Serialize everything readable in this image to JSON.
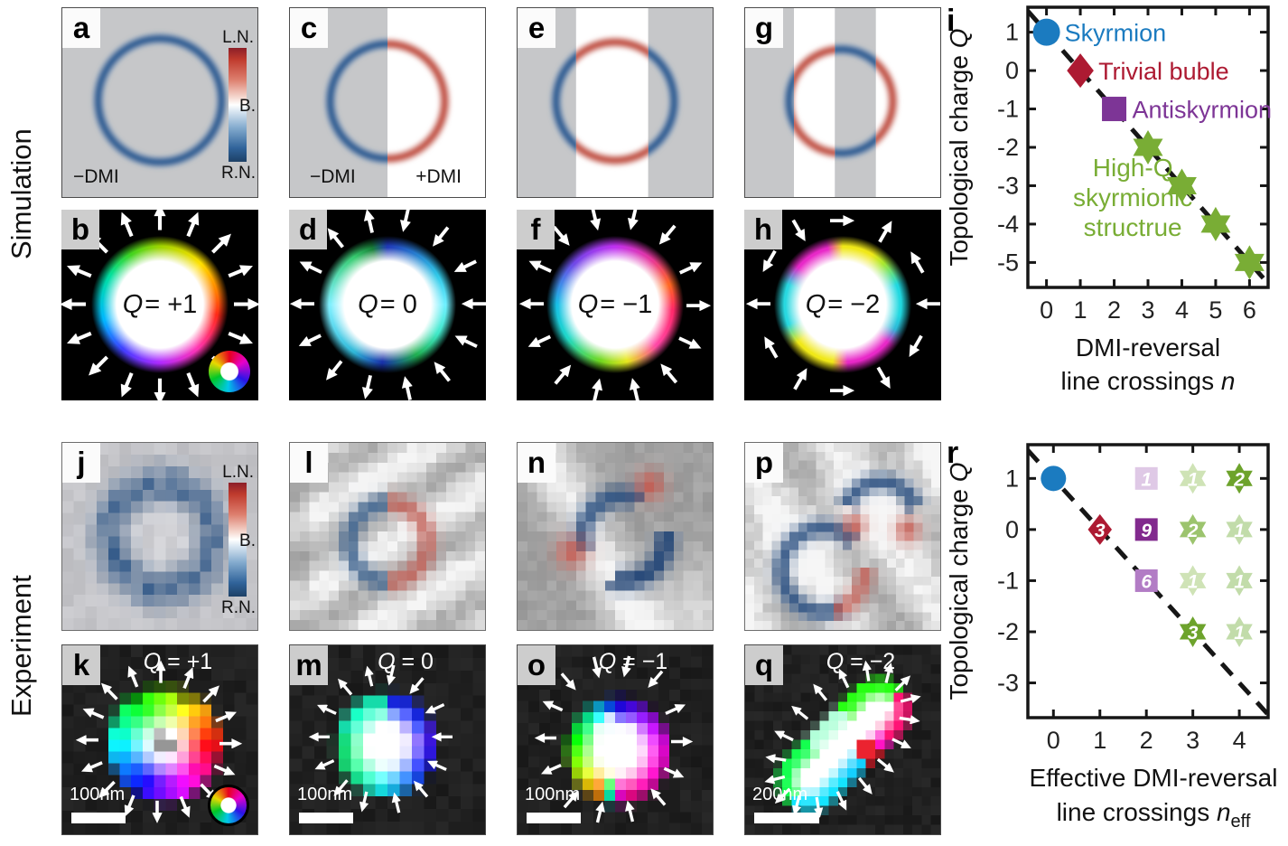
{
  "side_labels": {
    "simulation": "Simulation",
    "experiment": "Experiment"
  },
  "colorbar": {
    "top": "L.N.",
    "mid": "B.",
    "bottom": "R.N."
  },
  "panels": {
    "a": {
      "label": "a",
      "dmi_neg": "−DMI"
    },
    "c": {
      "label": "c",
      "dmi_neg": "−DMI",
      "dmi_pos": "+DMI"
    },
    "e": {
      "label": "e"
    },
    "g": {
      "label": "g"
    },
    "b": {
      "label": "b",
      "q_sym": "Q",
      "q_rest": " = +1"
    },
    "d": {
      "label": "d",
      "q_sym": "Q",
      "q_rest": " = 0"
    },
    "f": {
      "label": "f",
      "q_sym": "Q",
      "q_rest": " = −1"
    },
    "h": {
      "label": "h",
      "q_sym": "Q",
      "q_rest": " = −2"
    },
    "j": {
      "label": "j"
    },
    "l": {
      "label": "l"
    },
    "n": {
      "label": "n"
    },
    "p": {
      "label": "p"
    },
    "k": {
      "label": "k",
      "q_sym": "Q",
      "q_rest": " = +1",
      "scale_bar": "100nm"
    },
    "m": {
      "label": "m",
      "q_sym": "Q",
      "q_rest": " = 0",
      "scale_bar": "100nm"
    },
    "o": {
      "label": "o",
      "q_sym": "Q",
      "q_rest": " = −1",
      "scale_bar": "100nm"
    },
    "q": {
      "label": "q",
      "q_sym": "Q",
      "q_rest": " = −2",
      "scale_bar": "200nm"
    }
  },
  "chart_data": [
    {
      "id": "i",
      "type": "scatter",
      "panel_label": "i",
      "ylabel_parts": [
        "Topological charge ",
        "Q"
      ],
      "xlabel_line1": "DMI-reversal",
      "xlabel_line2_parts": [
        "line crossings ",
        "n",
        ""
      ],
      "xlim": [
        -0.55,
        6.55
      ],
      "ylim": [
        -5.65,
        1.65
      ],
      "xticks": [
        "0",
        "1",
        "2",
        "3",
        "4",
        "5",
        "6"
      ],
      "xtick_vals": [
        0,
        1,
        2,
        3,
        4,
        5,
        6
      ],
      "yticks": [
        "1",
        "0",
        "-1",
        "-2",
        "-3",
        "-4",
        "-5"
      ],
      "ytick_vals": [
        1,
        0,
        -1,
        -2,
        -3,
        -4,
        -5
      ],
      "trend_line": {
        "x1": -0.55,
        "y1": 1.55,
        "x2": 6.6,
        "y2": -5.6,
        "style": "dashed"
      },
      "points": [
        {
          "x": 0,
          "y": 1,
          "marker": "circle",
          "color": "#1b7bc0",
          "label": "Skyrmion"
        },
        {
          "x": 1,
          "y": 0,
          "marker": "diamond",
          "color": "#ad1a32",
          "label": "Trivial buble"
        },
        {
          "x": 2,
          "y": -1,
          "marker": "square",
          "color": "#7d3596",
          "label": "Antiskyrmion"
        },
        {
          "x": 3,
          "y": -2,
          "marker": "star6",
          "color": "#79ad35"
        },
        {
          "x": 4,
          "y": -3,
          "marker": "star6",
          "color": "#79ad35"
        },
        {
          "x": 5,
          "y": -4,
          "marker": "star6",
          "color": "#79ad35"
        },
        {
          "x": 6,
          "y": -5,
          "marker": "star6",
          "color": "#79ad35"
        }
      ],
      "annotation": {
        "lines": [
          "High-Q",
          "skyrmionic",
          "structrue"
        ],
        "x": 2.55,
        "y": -3.3,
        "color": "#79ad35"
      }
    },
    {
      "id": "r",
      "type": "scatter",
      "panel_label": "r",
      "ylabel_parts": [
        "Topological charge ",
        "Q"
      ],
      "xlabel_line1": "Effective DMI-reversal",
      "xlabel_line2_parts": [
        "line crossings ",
        "n",
        "eff"
      ],
      "xlim": [
        -0.55,
        4.62
      ],
      "ylim": [
        -3.68,
        1.66
      ],
      "xticks": [
        "0",
        "1",
        "2",
        "3",
        "4"
      ],
      "xtick_vals": [
        0,
        1,
        2,
        3,
        4
      ],
      "yticks": [
        "1",
        "0",
        "-1",
        "-2",
        "-3"
      ],
      "ytick_vals": [
        1,
        0,
        -1,
        -2,
        -3
      ],
      "trend_line": {
        "x1": -0.55,
        "y1": 1.55,
        "x2": 4.7,
        "y2": -3.7,
        "style": "dashed"
      },
      "points": [
        {
          "x": 0,
          "y": 1,
          "marker": "circle",
          "color": "#1b7bc0"
        },
        {
          "x": 1,
          "y": 0,
          "marker": "diamond",
          "color": "#ad1a32",
          "count": "3"
        },
        {
          "x": 2,
          "y": 1,
          "marker": "square",
          "color": "#dfc9e6",
          "count": "1"
        },
        {
          "x": 2,
          "y": 0,
          "marker": "square",
          "color": "#822a8e",
          "count": "9"
        },
        {
          "x": 2,
          "y": -1,
          "marker": "square",
          "color": "#b27cc5",
          "count": "6"
        },
        {
          "x": 3,
          "y": 1,
          "marker": "star6",
          "color": "#cfe3b6",
          "count": "1"
        },
        {
          "x": 3,
          "y": 0,
          "marker": "star6",
          "color": "#9cc46e",
          "count": "2"
        },
        {
          "x": 3,
          "y": -1,
          "marker": "star6",
          "color": "#cfe3b6",
          "count": "1"
        },
        {
          "x": 3,
          "y": -2,
          "marker": "star6",
          "color": "#6da32c",
          "count": "3"
        },
        {
          "x": 4,
          "y": 1,
          "marker": "star6",
          "color": "#6da32c",
          "count": "2"
        },
        {
          "x": 4,
          "y": 0,
          "marker": "star6",
          "color": "#c2dcaa",
          "count": "1"
        },
        {
          "x": 4,
          "y": -1,
          "marker": "star6",
          "color": "#c2dcaa",
          "count": "1"
        },
        {
          "x": 4,
          "y": -2,
          "marker": "star6",
          "color": "#c2dcaa",
          "count": "1"
        }
      ]
    }
  ]
}
